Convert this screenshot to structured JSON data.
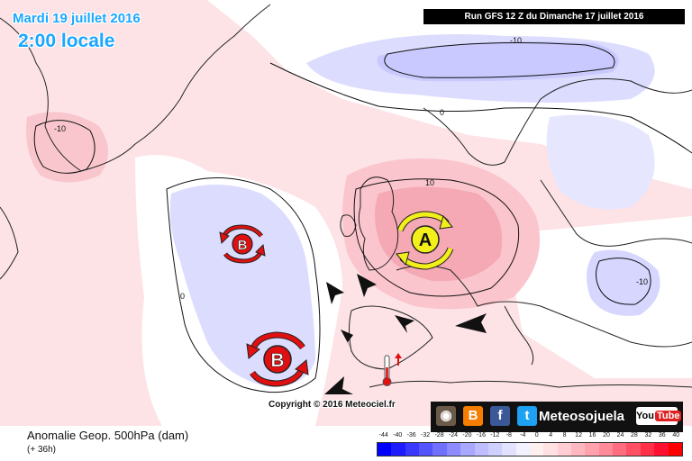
{
  "header": {
    "date": "Mardi 19 juillet 2016",
    "local_time": "2:00 locale",
    "run": "Run GFS 12 Z du Dimanche 17 juillet 2016"
  },
  "map": {
    "contour_labels": [
      "-10",
      "0",
      "-10",
      "10",
      "0",
      "-10"
    ],
    "high_symbol": "A",
    "low_symbols": [
      "B",
      "B"
    ],
    "anomaly_colors": {
      "positive": "#fbd3d8",
      "positive_strong": "#f4a9b4",
      "negative": "#dcdcff"
    },
    "symbol_colors": {
      "high": "#f3ef1b",
      "low": "#e01010"
    }
  },
  "copyright": "Copyright © 2016 Meteociel.fr",
  "social": {
    "brand": "Meteosojuela",
    "icons": [
      "camera-icon",
      "blogger-icon",
      "facebook-icon",
      "twitter-icon",
      "youtube-icon"
    ],
    "youtube_label_left": "You",
    "youtube_label_right": "Tube"
  },
  "footer": {
    "title": "Anomalie Geop. 500hPa (dam)",
    "subtitle": "(+ 36h)"
  },
  "scale": {
    "labels": [
      "-44",
      "-40",
      "-36",
      "-32",
      "-28",
      "-24",
      "-20",
      "-16",
      "-12",
      "-8",
      "-4",
      "0",
      "4",
      "8",
      "12",
      "16",
      "20",
      "24",
      "28",
      "32",
      "36",
      "40"
    ],
    "colors": [
      "#0000ff",
      "#1c1cff",
      "#3838ff",
      "#5454ff",
      "#7070ff",
      "#8c8cff",
      "#a8a8ff",
      "#bdbdff",
      "#d0d0ff",
      "#e2e2ff",
      "#f1f1ff",
      "#fff0f0",
      "#ffe0e3",
      "#ffcdd2",
      "#ffb8c0",
      "#ffa2ad",
      "#ff8a98",
      "#ff6e80",
      "#ff5064",
      "#ff3048",
      "#ff1030",
      "#ff0000"
    ]
  }
}
